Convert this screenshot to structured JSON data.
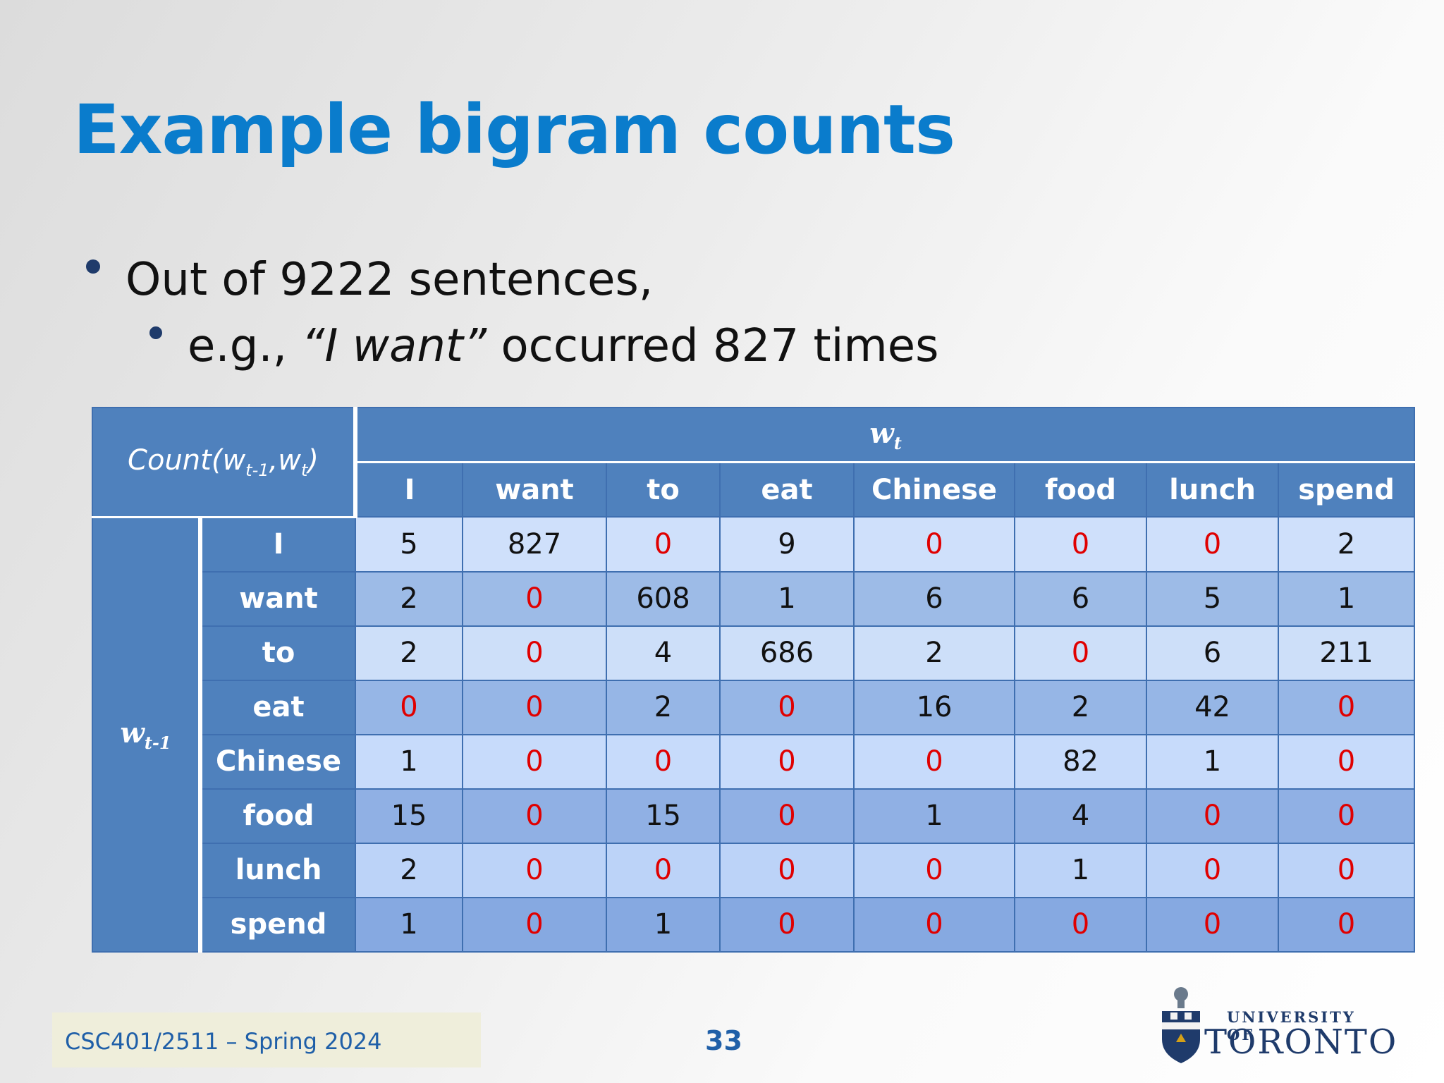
{
  "slide": {
    "title": "Example bigram counts",
    "bullet1": "Out of 9222 sentences,",
    "bullet2_prefix": "e.g., ",
    "bullet2_quote": "“I want”",
    "bullet2_suffix": " occurred 827 times"
  },
  "table": {
    "corner_label": "Count(w",
    "corner_sub1": "t-1",
    "corner_mid": ",w",
    "corner_sub2": "t",
    "corner_end": ")",
    "col_axis": "w",
    "col_axis_sub": "t",
    "row_axis": "w",
    "row_axis_sub": "t-1",
    "columns": [
      "I",
      "want",
      "to",
      "eat",
      "Chinese",
      "food",
      "lunch",
      "spend"
    ],
    "rows": [
      {
        "label": "I",
        "values": [
          "5",
          "827",
          "0",
          "9",
          "0",
          "0",
          "0",
          "2"
        ]
      },
      {
        "label": "want",
        "values": [
          "2",
          "0",
          "608",
          "1",
          "6",
          "6",
          "5",
          "1"
        ]
      },
      {
        "label": "to",
        "values": [
          "2",
          "0",
          "4",
          "686",
          "2",
          "0",
          "6",
          "211"
        ]
      },
      {
        "label": "eat",
        "values": [
          "0",
          "0",
          "2",
          "0",
          "16",
          "2",
          "42",
          "0"
        ]
      },
      {
        "label": "Chinese",
        "values": [
          "1",
          "0",
          "0",
          "0",
          "0",
          "82",
          "1",
          "0"
        ]
      },
      {
        "label": "food",
        "values": [
          "15",
          "0",
          "15",
          "0",
          "1",
          "4",
          "0",
          "0"
        ]
      },
      {
        "label": "lunch",
        "values": [
          "2",
          "0",
          "0",
          "0",
          "0",
          "1",
          "0",
          "0"
        ]
      },
      {
        "label": "spend",
        "values": [
          "1",
          "0",
          "1",
          "0",
          "0",
          "0",
          "0",
          "0"
        ]
      }
    ],
    "zero_color": "#e00000",
    "header_color": "#4f81bd"
  },
  "footer": {
    "course": "CSC401/2511 – Spring 2024",
    "page": "33",
    "logo_small": "UNIVERSITY OF",
    "logo_big": "TORONTO"
  }
}
